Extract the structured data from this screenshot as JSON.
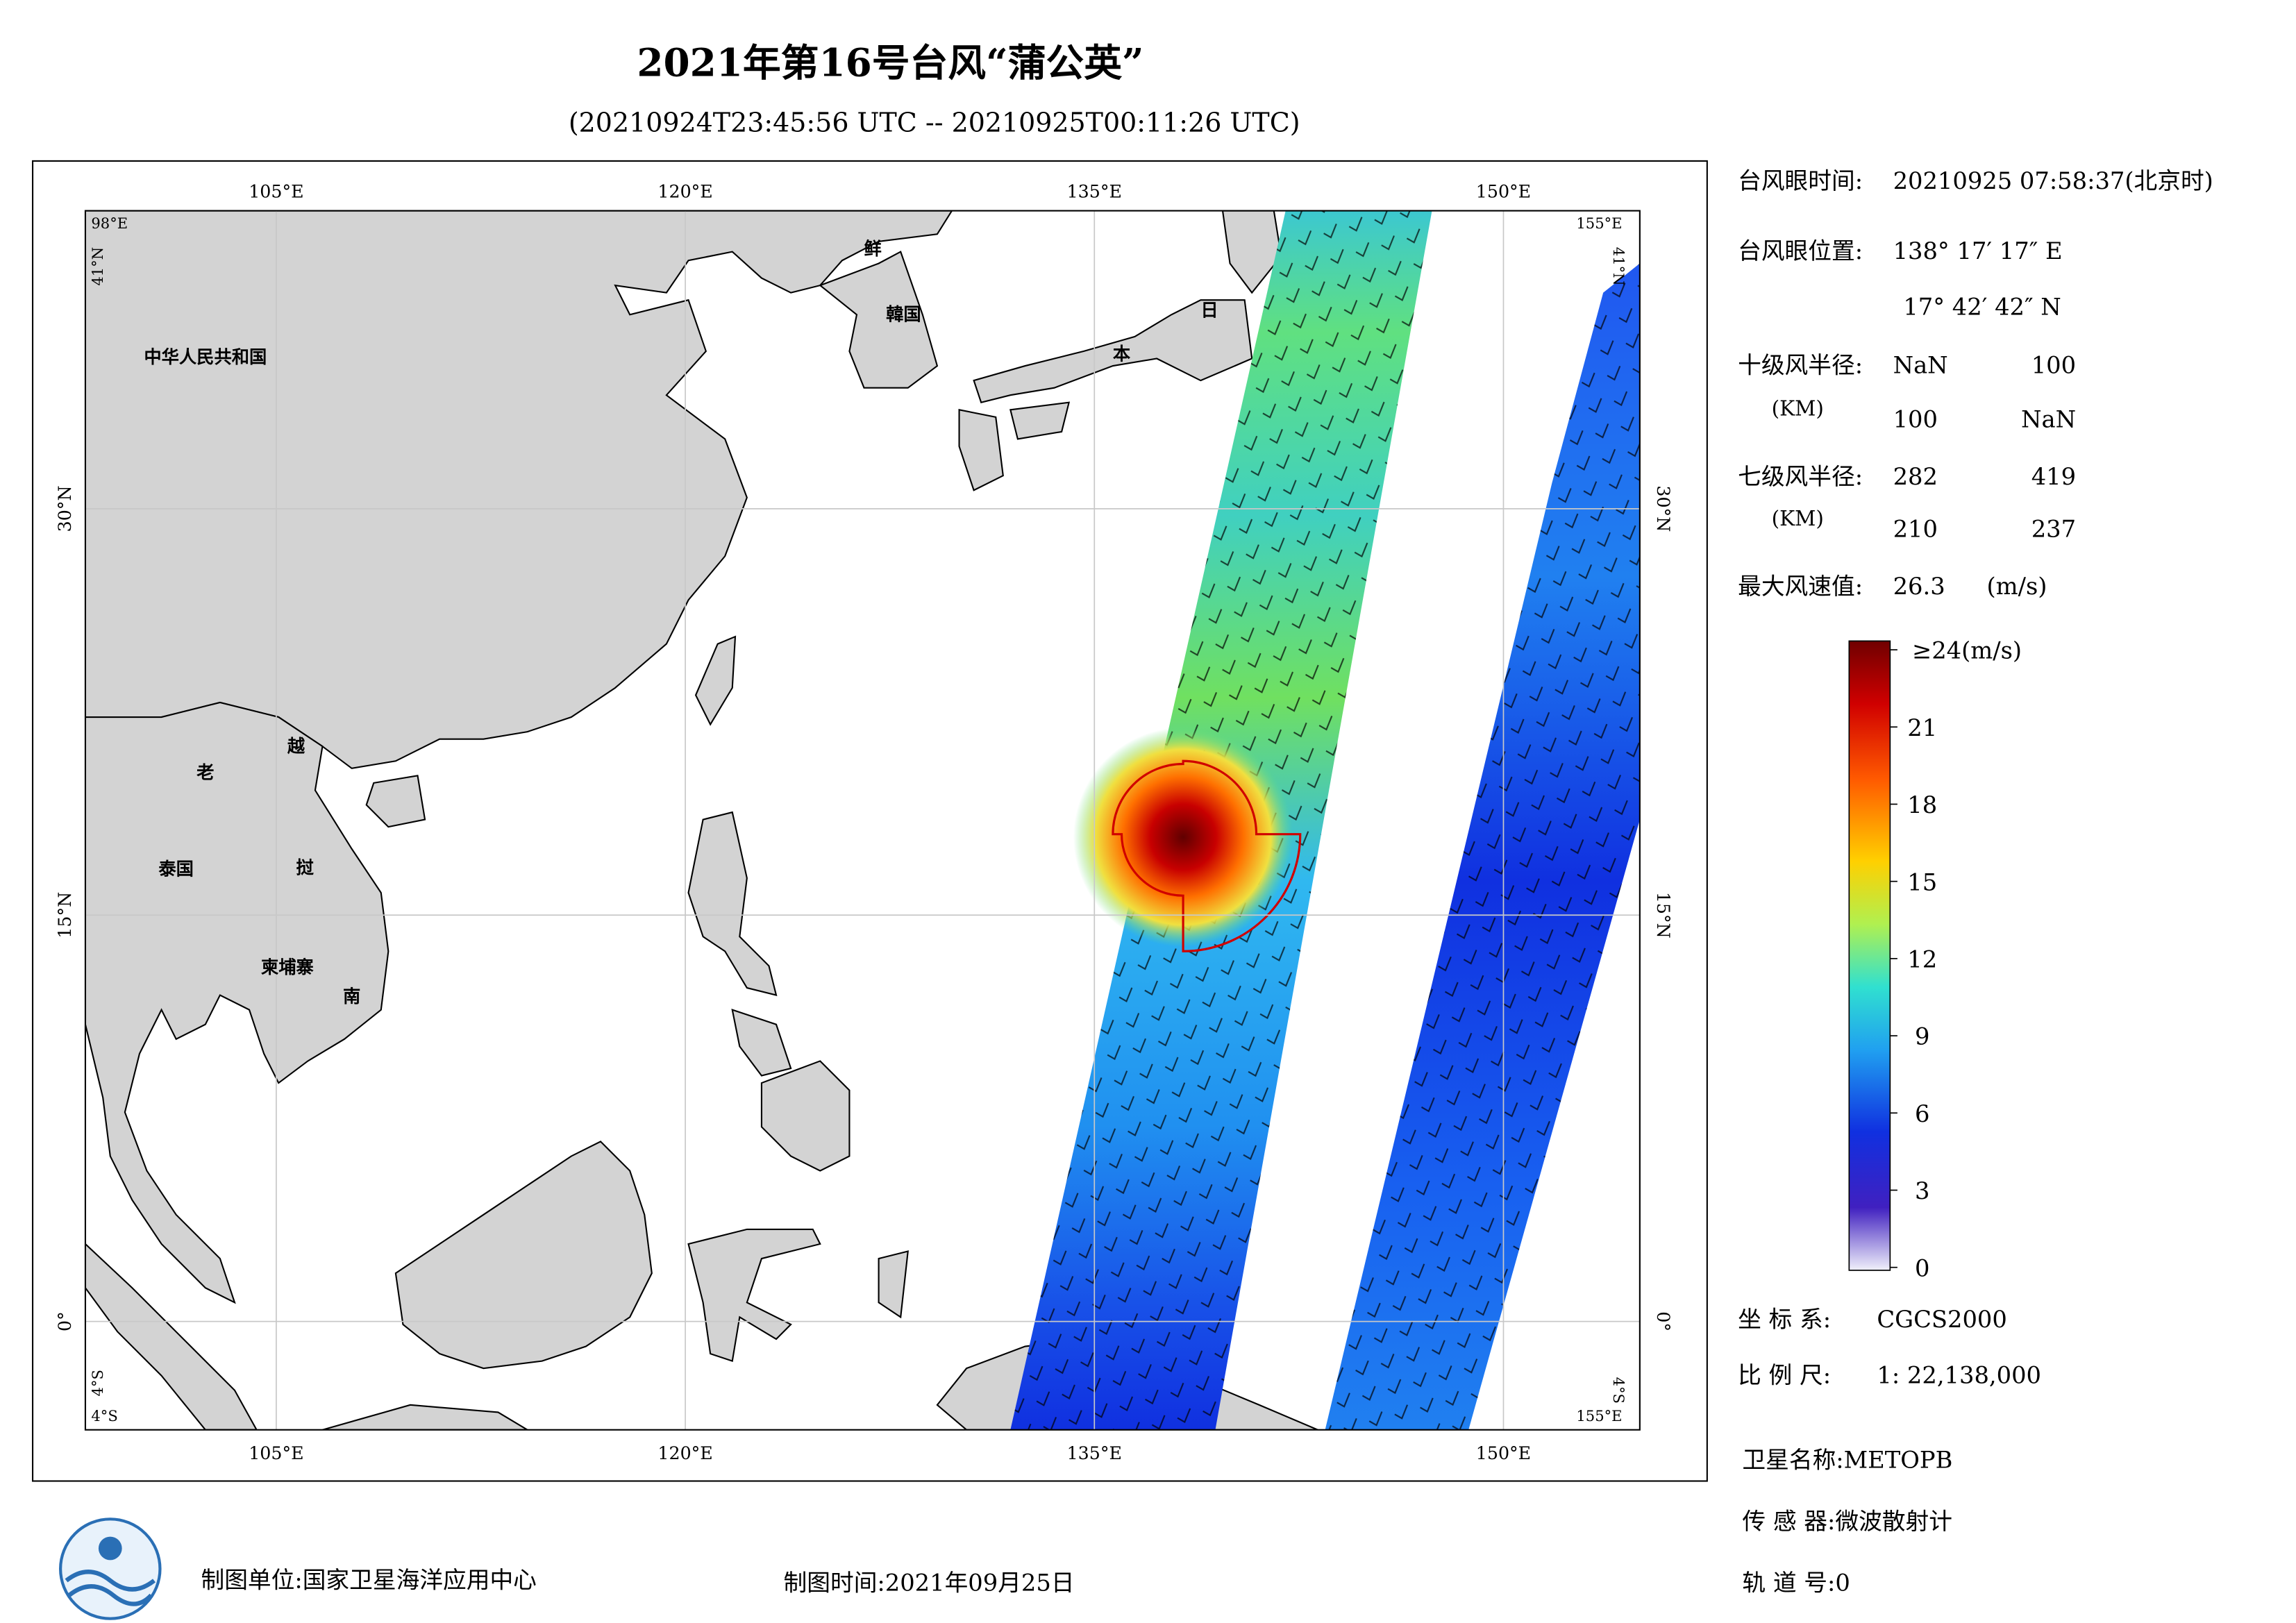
{
  "header": {
    "title": "2021年第16号台风“蒲公英”",
    "subtitle": "(20210924T23:45:56 UTC -- 20210925T00:11:26 UTC)"
  },
  "map": {
    "xlim": [
      98,
      155
    ],
    "ylim": [
      -4,
      41
    ],
    "xticks": [
      {
        "value": 105,
        "label": "105°E"
      },
      {
        "value": 120,
        "label": "120°E"
      },
      {
        "value": 135,
        "label": "135°E"
      },
      {
        "value": 150,
        "label": "150°E"
      }
    ],
    "yticks": [
      {
        "value": 30,
        "label": "30°N"
      },
      {
        "value": 15,
        "label": "15°N"
      },
      {
        "value": 0,
        "label": "0°"
      }
    ],
    "corners": {
      "top_left_lon": "98°E",
      "top_left_lat": "41°N",
      "top_right_lon": "155°E",
      "top_right_lat": "41°N",
      "bottom_left_lat": "4°S",
      "bottom_left_lon": "4°S",
      "bottom_right_lat": "4°S",
      "bottom_right_lon": "155°E"
    },
    "places": [
      "中华人民共和国",
      "鲜",
      "韓国",
      "日",
      "本",
      "老",
      "越",
      "泰国",
      "挝",
      "柬埔寨",
      "南"
    ]
  },
  "info": {
    "eye_time": {
      "label": "台风眼时间:",
      "value": "20210925 07:58:37(北京时)"
    },
    "eye_position": {
      "label": "台风眼位置:",
      "lon": "138° 17′ 17″ E",
      "lat": "17° 42′ 42″ N"
    },
    "r10": {
      "label": "十级风半径:",
      "unit": "(KM)",
      "values": [
        "NaN",
        "100",
        "100",
        "NaN"
      ]
    },
    "r7": {
      "label": "七级风半径:",
      "unit": "(KM)",
      "values": [
        "282",
        "419",
        "210",
        "237"
      ]
    },
    "max_wind": {
      "label": "最大风速值:",
      "value": "26.3",
      "unit": "(m/s)"
    },
    "crs": {
      "label": "坐 标 系:",
      "value": "CGCS2000"
    },
    "scale": {
      "label": "比 例 尺:",
      "value": "1: 22,138,000"
    }
  },
  "colorbar": {
    "lim": [
      0,
      24
    ],
    "ticks": [
      0,
      3,
      6,
      9,
      12,
      15,
      18,
      21,
      {
        "value": 24,
        "label": "≥24(m/s)"
      }
    ]
  },
  "footer": {
    "unit": "制图单位:国家卫星海洋应用中心",
    "time": "制图时间:2021年09月25日",
    "satellite": "卫星名称:METOPB",
    "sensor": "传 感 器:微波散射计",
    "orbit": "轨 道 号:0"
  }
}
